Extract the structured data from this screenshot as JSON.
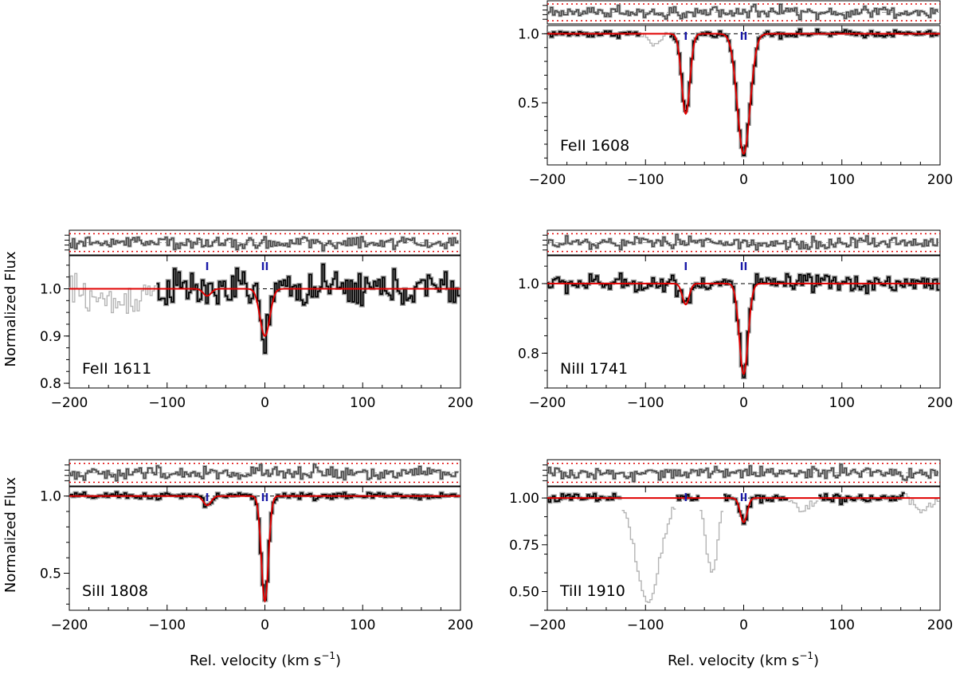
{
  "figure": {
    "ylabel": "Normalized Flux",
    "xlabel_main": "Rel. velocity  (km s",
    "xlabel_sup": "−1",
    "xlabel_close": ")"
  },
  "colors": {
    "data": "#000000",
    "masked": "#b4b4b4",
    "error": "#9a9a9a",
    "model": "#e00000",
    "residual_band": "#e00000",
    "component_tick": "#1a1aa8",
    "continuum": "#000000"
  },
  "chart_data": [
    {
      "type": "line",
      "ion": "FeII 1608",
      "xlim": [
        -200,
        200
      ],
      "ylim": [
        0.05,
        1.06
      ],
      "xticks": [
        -200,
        -100,
        0,
        100,
        200
      ],
      "xtick_labels": [
        "−200",
        "−100",
        "0",
        "100",
        "200"
      ],
      "yticks": [
        1.0,
        0.5
      ],
      "ytick_labels": [
        "1.0",
        "0.5"
      ],
      "components": [
        -59,
        0
      ],
      "component_tick_labels": [
        "I",
        "II"
      ],
      "model_components": [
        {
          "v": -59,
          "depth": 0.58,
          "sigma": 4.2
        },
        {
          "v": 0,
          "depth": 0.87,
          "sigma": 6.5
        }
      ],
      "masked_ranges": [
        [
          -105,
          -75
        ]
      ],
      "noise": 0.012,
      "ylabel_shown": false
    },
    {
      "type": "line",
      "ion": "FeII 1611",
      "xlim": [
        -200,
        200
      ],
      "ylim": [
        0.79,
        1.07
      ],
      "xticks": [
        -200,
        -100,
        0,
        100,
        200
      ],
      "xtick_labels": [
        "−200",
        "−100",
        "0",
        "100",
        "200"
      ],
      "yticks": [
        1.0,
        0.9,
        0.8
      ],
      "ytick_labels": [
        "1.0",
        "0.9",
        "0.8"
      ],
      "components": [
        -59,
        0
      ],
      "component_tick_labels": [
        "I",
        "II"
      ],
      "model_components": [
        {
          "v": -59,
          "depth": 0.015,
          "sigma": 4.0
        },
        {
          "v": 0,
          "depth": 0.1,
          "sigma": 5.0
        }
      ],
      "masked_ranges": [
        [
          -200,
          -110
        ]
      ],
      "noise": 0.018,
      "ylabel_shown": true
    },
    {
      "type": "line",
      "ion": "NiII 1741",
      "xlim": [
        -200,
        200
      ],
      "ylim": [
        0.7,
        1.08
      ],
      "xticks": [
        -200,
        -100,
        0,
        100,
        200
      ],
      "xtick_labels": [
        "−200",
        "−100",
        "0",
        "100",
        "200"
      ],
      "yticks": [
        1.0,
        0.8
      ],
      "ytick_labels": [
        "1.0",
        "0.8"
      ],
      "components": [
        -59,
        0
      ],
      "component_tick_labels": [
        "I",
        "II"
      ],
      "model_components": [
        {
          "v": -59,
          "depth": 0.06,
          "sigma": 3.5
        },
        {
          "v": 0,
          "depth": 0.26,
          "sigma": 4.5
        }
      ],
      "masked_ranges": [],
      "noise": 0.012,
      "ylabel_shown": false
    },
    {
      "type": "line",
      "ion": "SiII 1808",
      "xlim": [
        -200,
        200
      ],
      "ylim": [
        0.26,
        1.06
      ],
      "xticks": [
        -200,
        -100,
        0,
        100,
        200
      ],
      "xtick_labels": [
        "−200",
        "−100",
        "0",
        "100",
        "200"
      ],
      "yticks": [
        1.0,
        0.5
      ],
      "ytick_labels": [
        "1.0",
        "0.5"
      ],
      "components": [
        -59,
        0
      ],
      "component_tick_labels": [
        "I",
        "II"
      ],
      "model_components": [
        {
          "v": -59,
          "depth": 0.06,
          "sigma": 4.0
        },
        {
          "v": 0,
          "depth": 0.68,
          "sigma": 3.6
        }
      ],
      "masked_ranges": [],
      "noise": 0.01,
      "ylabel_shown": true
    },
    {
      "type": "line",
      "ion": "TiII 1910",
      "xlim": [
        -200,
        200
      ],
      "ylim": [
        0.4,
        1.06
      ],
      "xticks": [
        -200,
        -100,
        0,
        100,
        200
      ],
      "xtick_labels": [
        "−200",
        "−100",
        "0",
        "100",
        "200"
      ],
      "yticks": [
        1.0,
        0.75,
        0.5
      ],
      "ytick_labels": [
        "1.00",
        "0.75",
        "0.50"
      ],
      "components": [
        -59,
        0
      ],
      "component_tick_labels": [
        "I",
        "II"
      ],
      "model_components": [
        {
          "v": 0,
          "depth": 0.13,
          "sigma": 3.5
        }
      ],
      "masked_ranges": [
        [
          -125,
          -70
        ],
        [
          -45,
          -20
        ],
        [
          45,
          75
        ],
        [
          165,
          200
        ]
      ],
      "noise": 0.012,
      "ylabel_shown": false
    }
  ]
}
